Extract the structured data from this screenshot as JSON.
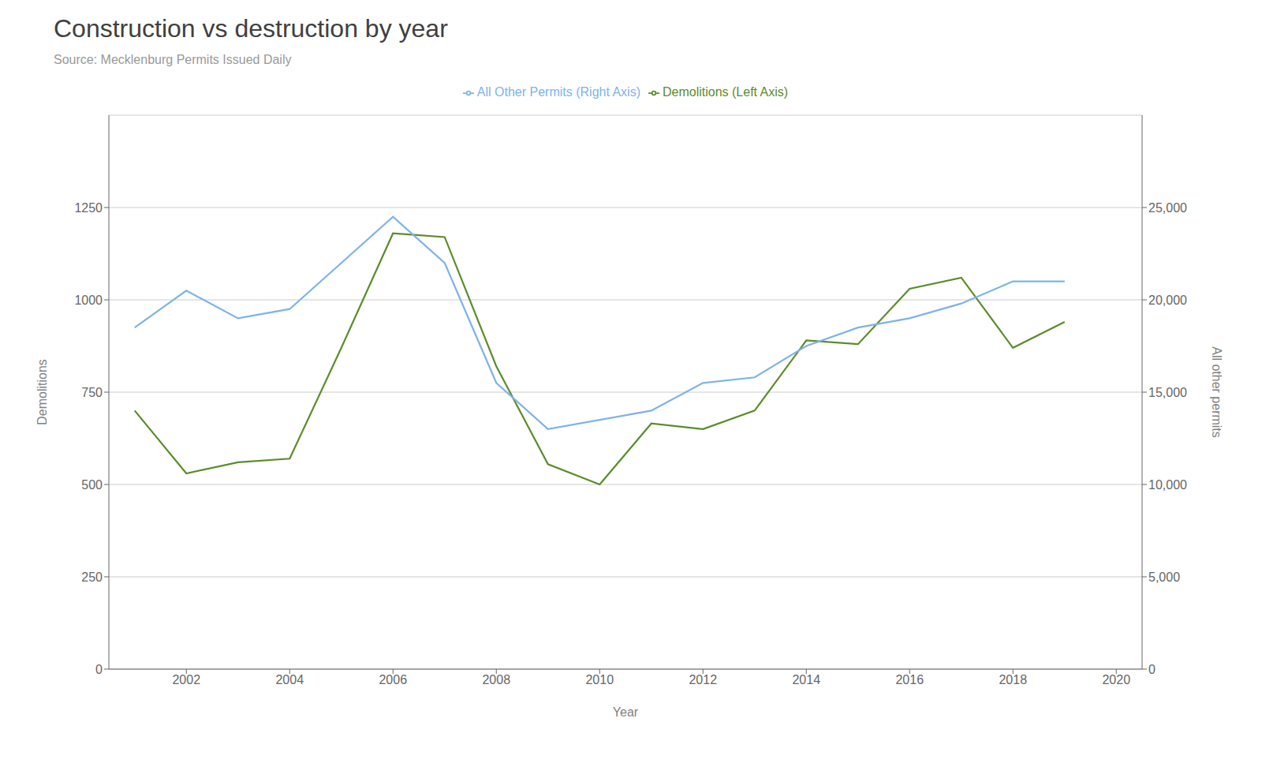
{
  "chart_data": {
    "type": "line",
    "title": "Construction vs destruction by year",
    "subtitle": "Source: Mecklenburg Permits Issued Daily",
    "x_label": "Year",
    "y_label": "Demolitions",
    "y2_label": "All other permits",
    "x": [
      2001,
      2002,
      2003,
      2004,
      2005,
      2006,
      2007,
      2008,
      2009,
      2010,
      2011,
      2012,
      2013,
      2014,
      2015,
      2016,
      2017,
      2018,
      2019
    ],
    "series": [
      {
        "name": "Demolitions (Left Axis)",
        "color": "#5b8c2a",
        "axis": "y",
        "values": [
          700,
          530,
          560,
          570,
          870,
          1180,
          1170,
          820,
          555,
          500,
          665,
          650,
          700,
          890,
          880,
          1030,
          1060,
          870,
          940
        ]
      },
      {
        "name": "All Other Permits (Right Axis)",
        "color": "#7eb3e8",
        "axis": "y2",
        "values": [
          18500,
          20500,
          19000,
          19500,
          22000,
          24500,
          22000,
          15500,
          13000,
          13500,
          14000,
          15500,
          15800,
          17500,
          18500,
          19000,
          19800,
          21000,
          21000
        ]
      }
    ],
    "xlim": [
      2000.5,
      2020.5
    ],
    "xticks": [
      2002,
      2004,
      2006,
      2008,
      2010,
      2012,
      2014,
      2016,
      2018,
      2020
    ],
    "ylim": [
      0,
      1500
    ],
    "yticks": [
      0,
      250,
      500,
      750,
      1000,
      1250
    ],
    "y2lim": [
      0,
      30000
    ],
    "y2ticks": [
      0,
      {
        "value": 5000,
        "label": "5,000"
      },
      {
        "value": 10000,
        "label": "10,000"
      },
      {
        "value": 15000,
        "label": "15,000"
      },
      {
        "value": 20000,
        "label": "20,000"
      },
      {
        "value": 25000,
        "label": "25,000"
      }
    ],
    "grid": true,
    "legend": "top"
  }
}
